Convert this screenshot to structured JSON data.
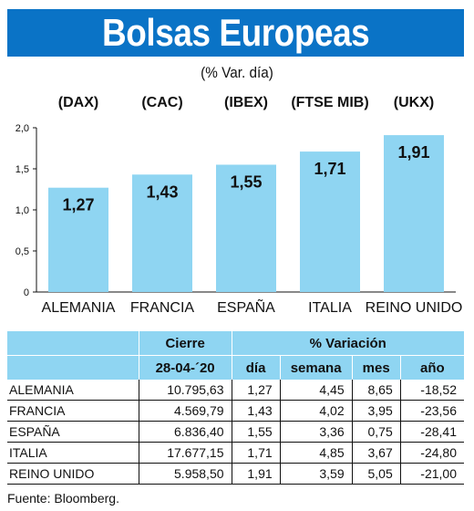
{
  "title": "Bolsas Europeas",
  "subtitle": "(% Var. día)",
  "chart_data": {
    "type": "bar",
    "title": "Bolsas Europeas",
    "subtitle": "(% Var. día)",
    "categories": [
      "ALEMANIA",
      "FRANCIA",
      "ESPAÑA",
      "ITALIA",
      "REINO UNIDO"
    ],
    "index_labels": [
      "(DAX)",
      "(CAC)",
      "(IBEX)",
      "(FTSE MIB)",
      "(UKX)"
    ],
    "values": [
      1.27,
      1.43,
      1.55,
      1.71,
      1.91
    ],
    "value_labels": [
      "1,27",
      "1,43",
      "1,55",
      "1,71",
      "1,91"
    ],
    "yticks": [
      "0",
      "0,5",
      "1,0",
      "1,5",
      "2,0"
    ],
    "ylim": [
      0,
      2.0
    ],
    "bar_color": "#8fd5f2",
    "grid": false
  },
  "table": {
    "header_cierre": "Cierre",
    "header_variacion": "% Variación",
    "header_date": "28-04-´20",
    "header_dia": "día",
    "header_semana": "semana",
    "header_mes": "mes",
    "header_ano": "año",
    "rows": [
      {
        "name": "ALEMANIA",
        "cierre": "10.795,63",
        "dia": "1,27",
        "semana": "4,45",
        "mes": "8,65",
        "ano": "-18,52"
      },
      {
        "name": "FRANCIA",
        "cierre": "4.569,79",
        "dia": "1,43",
        "semana": "4,02",
        "mes": "3,95",
        "ano": "-23,56"
      },
      {
        "name": "ESPAÑA",
        "cierre": "6.836,40",
        "dia": "1,55",
        "semana": "3,36",
        "mes": "0,75",
        "ano": "-28,41"
      },
      {
        "name": "ITALIA",
        "cierre": "17.677,15",
        "dia": "1,71",
        "semana": "4,85",
        "mes": "3,67",
        "ano": "-24,80"
      },
      {
        "name": "REINO UNIDO",
        "cierre": "5.958,50",
        "dia": "1,91",
        "semana": "3,59",
        "mes": "5,05",
        "ano": "-21,00"
      }
    ]
  },
  "source": "Fuente: Bloomberg.",
  "colors": {
    "title_bg": "#0a73c6",
    "accent": "#8fd5f2"
  }
}
